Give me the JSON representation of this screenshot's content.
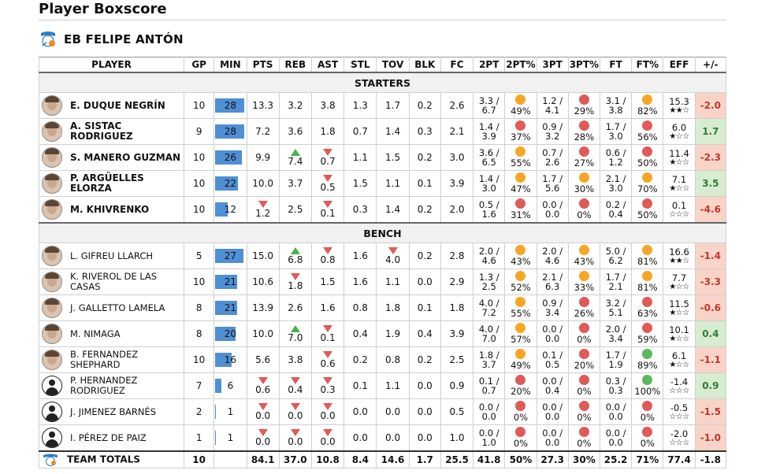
{
  "page_title": "Player Boxscore",
  "team": {
    "name": "EB FELIPE ANTÓN",
    "logo_icon": "team-logo-icon"
  },
  "colors": {
    "min_bar": "#4f8fd4",
    "dot_orange": "#f6a623",
    "dot_red": "#e05a57",
    "dot_green": "#5cb85c",
    "pm_neg_bg": "#f7d4c7",
    "pm_pos_bg": "#d7ecd0"
  },
  "headers": [
    "PLAYER",
    "GP",
    "MIN",
    "PTS",
    "REB",
    "AST",
    "STL",
    "TOV",
    "BLK",
    "FC",
    "2PT",
    "2PT%",
    "3PT",
    "3PT%",
    "FT",
    "FT%",
    "EFF",
    "+/-"
  ],
  "sections": {
    "starters": "STARTERS",
    "bench": "BENCH"
  },
  "starters": [
    {
      "name": "E. DUQUE NEGRÍN",
      "gp": "10",
      "min": "28",
      "pts": "13.3",
      "reb": "3.2",
      "ast": "3.8",
      "stl": "1.3",
      "tov": "1.7",
      "blk": "0.2",
      "fc": "2.6",
      "t2": [
        "3.3 /",
        "6.7"
      ],
      "t2p": "49%",
      "t2c": "orange",
      "t3": [
        "1.2 /",
        "4.1"
      ],
      "t3p": "29%",
      "t3c": "red",
      "ft": [
        "3.1 /",
        "3.8"
      ],
      "ftp": "82%",
      "ftc": "orange",
      "eff": "15.3",
      "stars": "★★☆",
      "pm": "-2.0",
      "bold": true
    },
    {
      "name": "A. SISTAC RODRIGUEZ",
      "gp": "9",
      "min": "28",
      "pts": "7.2",
      "reb": "3.6",
      "ast": "1.8",
      "stl": "0.7",
      "tov": "1.4",
      "blk": "0.3",
      "fc": "2.1",
      "t2": [
        "1.4 /",
        "3.9"
      ],
      "t2p": "37%",
      "t2c": "red",
      "t3": [
        "0.9 /",
        "3.2"
      ],
      "t3p": "28%",
      "t3c": "red",
      "ft": [
        "1.7 /",
        "3.0"
      ],
      "ftp": "56%",
      "ftc": "red",
      "eff": "6.0",
      "stars": "★☆☆",
      "pm": "1.7",
      "bold": true
    },
    {
      "name": "S. MANERO GUZMAN",
      "gp": "10",
      "min": "26",
      "pts": "9.9",
      "reb": "7.4",
      "reb_arrow": "up",
      "ast": "0.7",
      "ast_arrow": "down",
      "stl": "1.1",
      "tov": "1.5",
      "blk": "0.2",
      "fc": "3.0",
      "t2": [
        "3.6 /",
        "6.5"
      ],
      "t2p": "55%",
      "t2c": "orange",
      "t3": [
        "0.7 /",
        "2.6"
      ],
      "t3p": "27%",
      "t3c": "red",
      "ft": [
        "0.6 /",
        "1.2"
      ],
      "ftp": "50%",
      "ftc": "red",
      "eff": "11.4",
      "stars": "★☆☆",
      "pm": "-2.3",
      "bold": true
    },
    {
      "name": "P. ARGÜELLES ELORZA",
      "gp": "10",
      "min": "22",
      "pts": "10.0",
      "reb": "3.7",
      "ast": "0.5",
      "ast_arrow": "down",
      "stl": "1.5",
      "tov": "1.1",
      "blk": "0.1",
      "fc": "3.9",
      "t2": [
        "1.4 /",
        "3.0"
      ],
      "t2p": "47%",
      "t2c": "orange",
      "t3": [
        "1.7 /",
        "5.6"
      ],
      "t3p": "30%",
      "t3c": "orange",
      "ft": [
        "2.1 /",
        "3.0"
      ],
      "ftp": "70%",
      "ftc": "orange",
      "eff": "7.1",
      "stars": "★☆☆",
      "pm": "3.5",
      "bold": true
    },
    {
      "name": "M. KHIVRENKO",
      "gp": "10",
      "min": "12",
      "pts": "1.2",
      "pts_arrow": "down",
      "reb": "2.5",
      "ast": "0.1",
      "ast_arrow": "down",
      "stl": "0.3",
      "tov": "1.4",
      "blk": "0.2",
      "fc": "2.0",
      "t2": [
        "0.5 /",
        "1.6"
      ],
      "t2p": "31%",
      "t2c": "red",
      "t3": [
        "0.0 /",
        "0.0"
      ],
      "t3p": "0%",
      "t3c": "red",
      "ft": [
        "0.2 /",
        "0.4"
      ],
      "ftp": "50%",
      "ftc": "red",
      "eff": "0.1",
      "stars": "☆☆☆",
      "pm": "-4.6",
      "bold": true
    }
  ],
  "bench": [
    {
      "name": "L. GIFREU LLARCH",
      "gp": "5",
      "min": "27",
      "pts": "15.0",
      "reb": "6.8",
      "reb_arrow": "up",
      "ast": "0.8",
      "ast_arrow": "down",
      "stl": "1.6",
      "tov": "4.0",
      "tov_arrow": "down",
      "blk": "0.2",
      "fc": "2.8",
      "t2": [
        "2.0 /",
        "4.6"
      ],
      "t2p": "43%",
      "t2c": "orange",
      "t3": [
        "2.0 /",
        "4.6"
      ],
      "t3p": "43%",
      "t3c": "orange",
      "ft": [
        "5.0 /",
        "6.2"
      ],
      "ftp": "81%",
      "ftc": "orange",
      "eff": "16.6",
      "stars": "★★☆",
      "pm": "-1.4"
    },
    {
      "name": "K. RIVEROL DE LAS CASAS",
      "gp": "10",
      "min": "21",
      "pts": "10.6",
      "reb": "1.8",
      "reb_arrow": "down",
      "ast": "1.5",
      "stl": "1.6",
      "tov": "1.1",
      "blk": "0.0",
      "fc": "2.9",
      "t2": [
        "1.3 /",
        "2.5"
      ],
      "t2p": "52%",
      "t2c": "orange",
      "t3": [
        "2.1 /",
        "6.3"
      ],
      "t3p": "33%",
      "t3c": "orange",
      "ft": [
        "1.7 /",
        "2.1"
      ],
      "ftp": "81%",
      "ftc": "orange",
      "eff": "7.7",
      "stars": "★☆☆",
      "pm": "-3.3"
    },
    {
      "name": "J. GALLETTO LAMELA",
      "gp": "8",
      "min": "21",
      "pts": "13.9",
      "reb": "2.6",
      "ast": "1.6",
      "stl": "0.8",
      "tov": "1.8",
      "blk": "0.1",
      "fc": "1.8",
      "t2": [
        "4.0 /",
        "7.2"
      ],
      "t2p": "55%",
      "t2c": "orange",
      "t3": [
        "0.9 /",
        "3.4"
      ],
      "t3p": "26%",
      "t3c": "red",
      "ft": [
        "3.2 /",
        "5.1"
      ],
      "ftp": "63%",
      "ftc": "red",
      "eff": "11.5",
      "stars": "★☆☆",
      "pm": "-0.6"
    },
    {
      "name": "M. NIMAGA",
      "gp": "8",
      "min": "20",
      "pts": "10.0",
      "reb": "7.0",
      "reb_arrow": "up",
      "ast": "0.1",
      "ast_arrow": "down",
      "stl": "0.4",
      "tov": "1.9",
      "blk": "0.4",
      "fc": "3.9",
      "t2": [
        "4.0 /",
        "7.0"
      ],
      "t2p": "57%",
      "t2c": "orange",
      "t3": [
        "0.0 /",
        "0.0"
      ],
      "t3p": "0%",
      "t3c": "red",
      "ft": [
        "2.0 /",
        "3.4"
      ],
      "ftp": "59%",
      "ftc": "red",
      "eff": "10.1",
      "stars": "★☆☆",
      "pm": "0.4"
    },
    {
      "name": "B. FERNANDEZ SHEPHARD",
      "gp": "10",
      "min": "16",
      "pts": "5.6",
      "reb": "3.8",
      "ast": "0.6",
      "ast_arrow": "down",
      "stl": "0.2",
      "tov": "0.8",
      "blk": "0.2",
      "fc": "2.5",
      "t2": [
        "1.8 /",
        "3.7"
      ],
      "t2p": "49%",
      "t2c": "orange",
      "t3": [
        "0.1 /",
        "0.5"
      ],
      "t3p": "20%",
      "t3c": "red",
      "ft": [
        "1.7 /",
        "1.9"
      ],
      "ftp": "89%",
      "ftc": "green",
      "eff": "6.1",
      "stars": "★☆☆",
      "pm": "-1.1"
    },
    {
      "name": "P. HERNANDEZ RODRIGUEZ",
      "gp": "7",
      "min": "6",
      "pts": "0.6",
      "pts_arrow": "down",
      "reb": "0.4",
      "reb_arrow": "down",
      "ast": "0.3",
      "ast_arrow": "down",
      "stl": "0.1",
      "tov": "1.1",
      "blk": "0.0",
      "fc": "0.9",
      "t2": [
        "0.1 /",
        "0.7"
      ],
      "t2p": "20%",
      "t2c": "red",
      "t3": [
        "0.0 /",
        "0.4"
      ],
      "t3p": "0%",
      "t3c": "red",
      "ft": [
        "0.3 /",
        "0.3"
      ],
      "ftp": "100%",
      "ftc": "green",
      "eff": "-1.4",
      "stars": "☆☆☆",
      "pm": "0.9",
      "generic": true
    },
    {
      "name": "J. JIMENEZ BARNÉS",
      "gp": "2",
      "min": "1",
      "pts": "0.0",
      "pts_arrow": "down",
      "reb": "0.0",
      "reb_arrow": "down",
      "ast": "0.0",
      "ast_arrow": "down",
      "stl": "0.0",
      "tov": "0.0",
      "blk": "0.0",
      "fc": "0.5",
      "t2": [
        "0.0 /",
        "0.0"
      ],
      "t2p": "0%",
      "t2c": "red",
      "t3": [
        "0.0 /",
        "0.0"
      ],
      "t3p": "0%",
      "t3c": "red",
      "ft": [
        "0.0 /",
        "0.0"
      ],
      "ftp": "0%",
      "ftc": "red",
      "eff": "-0.5",
      "stars": "☆☆☆",
      "pm": "-1.5",
      "generic": true
    },
    {
      "name": "I. PÉREZ DE PAIZ",
      "gp": "1",
      "min": "1",
      "pts": "0.0",
      "pts_arrow": "down",
      "reb": "0.0",
      "reb_arrow": "down",
      "ast": "0.0",
      "ast_arrow": "down",
      "stl": "0.0",
      "tov": "0.0",
      "blk": "0.0",
      "fc": "1.0",
      "t2": [
        "0.0 /",
        "1.0"
      ],
      "t2p": "0%",
      "t2c": "red",
      "t3": [
        "0.0 /",
        "0.0"
      ],
      "t3p": "0%",
      "t3c": "red",
      "ft": [
        "0.0 /",
        "0.0"
      ],
      "ftp": "0%",
      "ftc": "red",
      "eff": "-2.0",
      "stars": "☆☆☆",
      "pm": "-1.0",
      "generic": true
    }
  ],
  "totals": {
    "name": "TEAM TOTALS",
    "gp": "10",
    "min": "",
    "pts": "84.1",
    "reb": "37.0",
    "ast": "10.8",
    "stl": "8.4",
    "tov": "14.6",
    "blk": "1.7",
    "fc": "25.5",
    "t2": "41.8",
    "t2p": "50%",
    "t3": "27.3",
    "t3p": "30%",
    "ft": "25.2",
    "ftp": "71%",
    "eff": "77.4",
    "pm": "-1.8"
  }
}
